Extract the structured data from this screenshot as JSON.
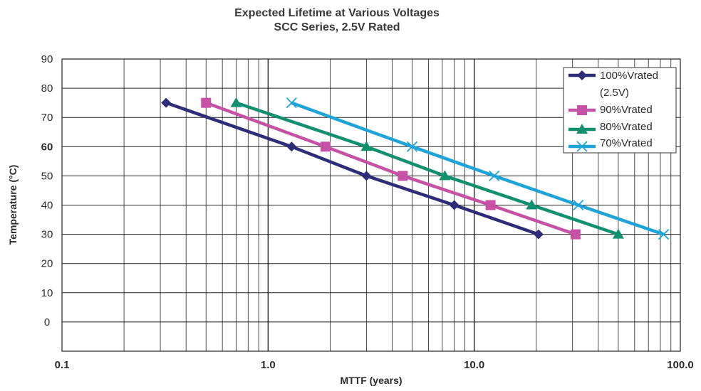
{
  "chart_data": {
    "type": "line",
    "title": "Expected Lifetime at Various Voltages",
    "subtitle": "SCC Series, 2.5V Rated",
    "xlabel": "MTTF (years)",
    "ylabel": "Temperature (°C)",
    "x_scale": "log",
    "xlim": [
      0.1,
      100.0
    ],
    "ylim": [
      -10,
      90
    ],
    "x_tick_labels": [
      "0.1",
      "1.0",
      "10.0",
      "100.0"
    ],
    "y_tick_labels": [
      "0",
      "10",
      "20",
      "30",
      "40",
      "50",
      "60",
      "70",
      "80",
      "90"
    ],
    "grid": true,
    "legend_position": "top-right",
    "series": [
      {
        "name": "100%Vrated\n(2.5V)",
        "name_lines": [
          "100%Vrated",
          "(2.5V)"
        ],
        "color": "#2e2d78",
        "marker": "diamond",
        "x": [
          0.32,
          1.3,
          3.0,
          8.0,
          20.5
        ],
        "y": [
          75,
          60,
          50,
          40,
          30
        ]
      },
      {
        "name": "90%Vrated",
        "name_lines": [
          "90%Vrated"
        ],
        "color": "#c552a4",
        "marker": "square",
        "x": [
          0.5,
          1.9,
          4.5,
          12.0,
          31.0
        ],
        "y": [
          75,
          60,
          50,
          40,
          30
        ]
      },
      {
        "name": "80%Vrated",
        "name_lines": [
          "80%Vrated"
        ],
        "color": "#139070",
        "marker": "triangle",
        "x": [
          0.7,
          3.0,
          7.2,
          19.0,
          50.0
        ],
        "y": [
          75,
          60,
          50,
          40,
          30
        ]
      },
      {
        "name": "70%Vrated",
        "name_lines": [
          "70%Vrated"
        ],
        "color": "#20a4d8",
        "marker": "x",
        "x": [
          1.3,
          5.0,
          12.5,
          32.0,
          83.0
        ],
        "y": [
          75,
          60,
          50,
          40,
          30
        ]
      }
    ]
  }
}
